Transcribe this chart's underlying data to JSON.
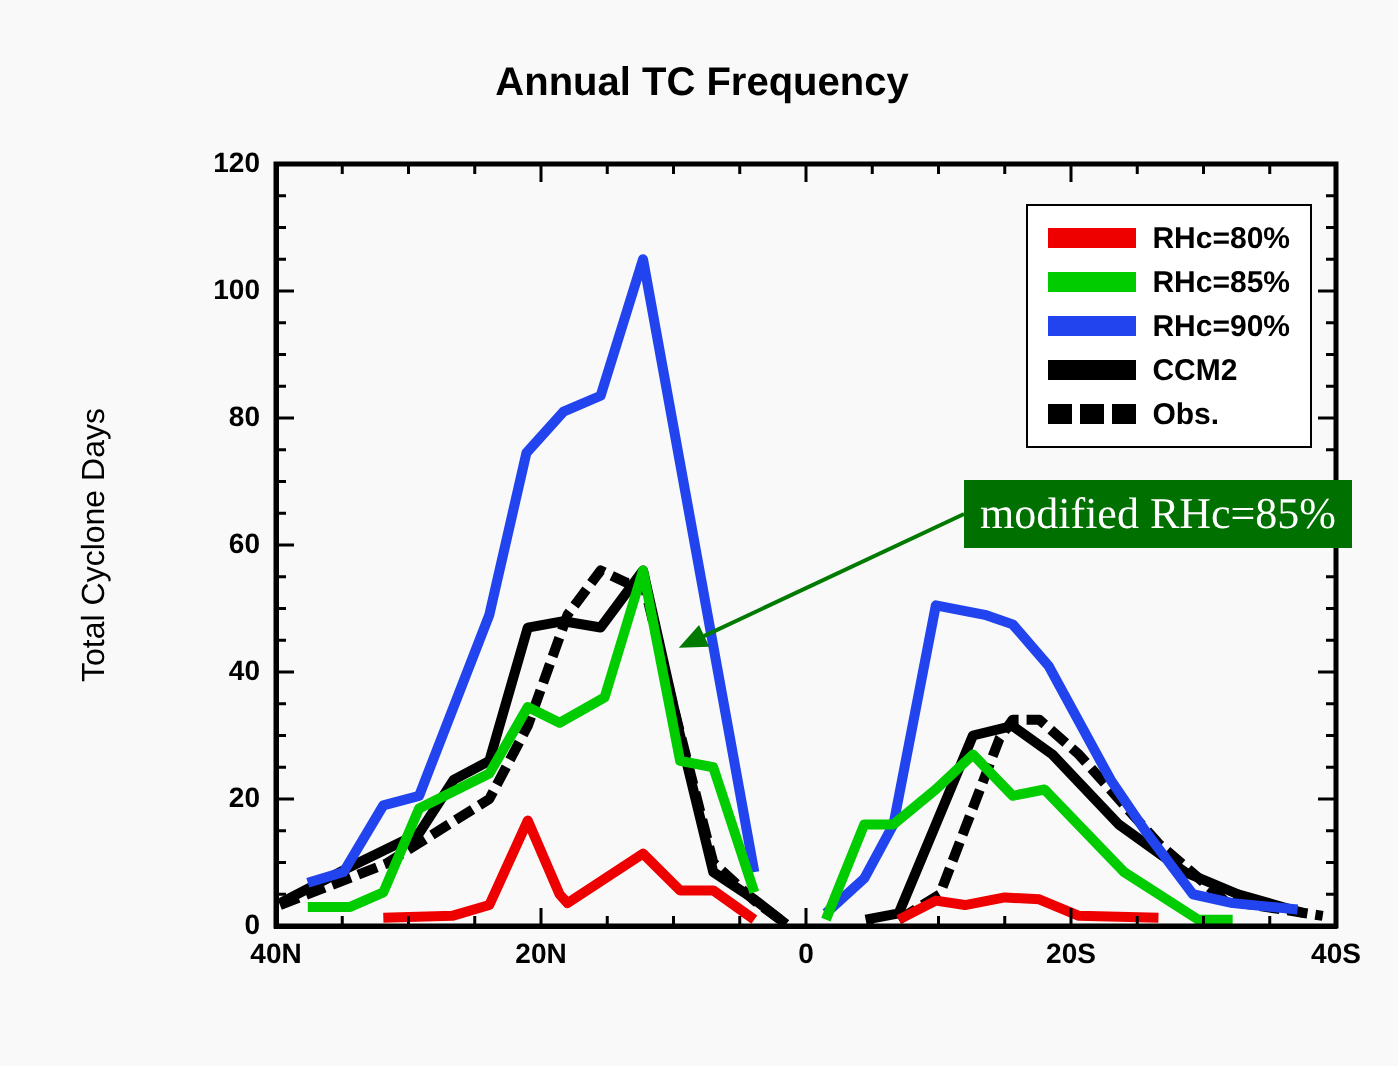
{
  "chart_data": {
    "type": "line",
    "title": "Annual TC Frequency",
    "ylabel": "Total Cyclone Days",
    "xlim": [
      40,
      -40
    ],
    "ylim": [
      0,
      120
    ],
    "xticks": [
      {
        "value": 40,
        "label": "40N"
      },
      {
        "value": 35,
        "label": null
      },
      {
        "value": 30,
        "label": null
      },
      {
        "value": 25,
        "label": null
      },
      {
        "value": 20,
        "label": "20N"
      },
      {
        "value": 15,
        "label": null
      },
      {
        "value": 10,
        "label": null
      },
      {
        "value": 5,
        "label": null
      },
      0,
      {
        "value": -5,
        "label": null
      },
      {
        "value": -10,
        "label": null
      },
      {
        "value": -15,
        "label": null
      },
      {
        "value": -20,
        "label": "20S"
      },
      {
        "value": -25,
        "label": null
      },
      {
        "value": -30,
        "label": null
      },
      {
        "value": -35,
        "label": null
      },
      {
        "value": -40,
        "label": "40S"
      }
    ],
    "yticks": [
      0,
      {
        "value": 5,
        "label": null
      },
      {
        "value": 10,
        "label": null
      },
      {
        "value": 15,
        "label": null
      },
      20,
      {
        "value": 25,
        "label": null
      },
      {
        "value": 30,
        "label": null
      },
      {
        "value": 35,
        "label": null
      },
      40,
      {
        "value": 45,
        "label": null
      },
      {
        "value": 50,
        "label": null
      },
      {
        "value": 55,
        "label": null
      },
      60,
      {
        "value": 65,
        "label": null
      },
      {
        "value": 70,
        "label": null
      },
      {
        "value": 75,
        "label": null
      },
      80,
      {
        "value": 85,
        "label": null
      },
      {
        "value": 90,
        "label": null
      },
      {
        "value": 95,
        "label": null
      },
      100,
      {
        "value": 105,
        "label": null
      },
      {
        "value": 110,
        "label": null
      },
      {
        "value": 115,
        "label": null
      },
      120
    ],
    "grid": false,
    "legend": "top right",
    "marker": "none",
    "series": [
      {
        "name": "RHc=80%",
        "color": "#ee0000",
        "x": [
          31.9,
          26.7,
          23.9,
          21,
          18.6,
          18,
          12.3,
          9.5,
          7,
          3.9,
          0,
          -7,
          -9.8,
          -12,
          -15,
          -17.6,
          -20.6,
          -26.6
        ],
        "values": [
          1.3,
          1.6,
          3.3,
          16.6,
          5,
          3.6,
          11.4,
          5.6,
          5.6,
          1,
          null,
          1,
          4,
          3.3,
          4.5,
          4.2,
          1.6,
          1.3
        ]
      },
      {
        "name": "RHc=85%",
        "color": "#00cc00",
        "x": [
          37.6,
          34.4,
          31.9,
          29.2,
          23.9,
          21,
          18.6,
          15.2,
          12.3,
          9.5,
          7,
          3.9,
          0,
          -1.5,
          -4.4,
          -6.6,
          -9.8,
          -12.6,
          -15.6,
          -18,
          -24,
          -29.6,
          -32.2
        ],
        "values": [
          3,
          3,
          5.3,
          18.5,
          24,
          34.5,
          32,
          36,
          56,
          26,
          25,
          5.3,
          null,
          1,
          16,
          16,
          21.5,
          27,
          20.5,
          21.5,
          8.5,
          1,
          1
        ]
      },
      {
        "name": "RHc=90%",
        "color": "#2244ee",
        "x": [
          37.6,
          34.9,
          31.9,
          29.2,
          23.9,
          21.1,
          18.3,
          15.5,
          12.3,
          3.9,
          0,
          -1.5,
          -4.4,
          -6.6,
          -9.8,
          -13.5,
          -15.6,
          -18.3,
          -23,
          -25.6,
          -29.2,
          -32.2,
          -37.1
        ],
        "values": [
          6.8,
          8.5,
          19,
          20.5,
          49,
          74.5,
          81,
          83.5,
          105,
          8.5,
          null,
          2,
          7.5,
          16,
          50.5,
          49,
          47.5,
          41,
          23,
          15,
          5,
          3.6,
          2.6
        ]
      },
      {
        "name": "CCM2",
        "color": "#000000",
        "x": [
          39.7,
          34.7,
          29.2,
          26.6,
          23.9,
          21,
          18.3,
          15.5,
          12.3,
          9.5,
          7,
          3.9,
          1.5,
          0,
          -4.5,
          -7,
          -12.6,
          -15.6,
          -18.6,
          -23.6,
          -28.6,
          -32.6,
          -37.6
        ],
        "values": [
          3.6,
          9,
          14.6,
          23,
          26,
          47,
          48,
          47,
          56,
          30,
          8.5,
          4.2,
          0.3,
          null,
          1,
          2,
          30,
          31.5,
          27,
          16,
          8.5,
          5,
          2
        ]
      },
      {
        "name": "Obs.",
        "color": "#000000",
        "line_style": "dashed",
        "x": [
          39.7,
          31.7,
          23.9,
          21,
          18.6,
          18,
          15.5,
          13.5,
          12.3,
          10,
          7,
          3.9,
          1.5,
          0,
          -7,
          -10.1,
          -14.6,
          -15.6,
          -17.6,
          -20.6,
          -26.6,
          -31.6,
          -39
        ],
        "values": [
          3.3,
          9.8,
          20,
          31.5,
          45.5,
          49,
          56,
          54,
          54.5,
          34.5,
          10,
          4,
          0.3,
          null,
          1,
          5,
          29.5,
          32.5,
          32.5,
          27,
          13,
          4,
          1.6
        ]
      }
    ],
    "annotations": [
      "modified RHc=85%"
    ]
  }
}
